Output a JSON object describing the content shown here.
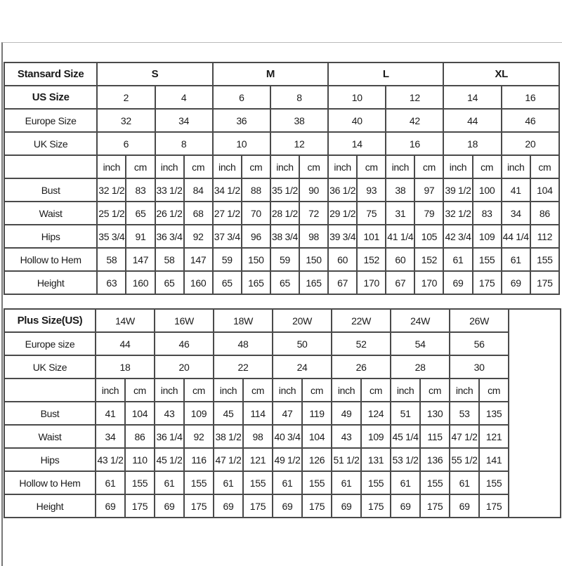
{
  "standard_table": {
    "header_label": "Stansard Size",
    "groups": [
      "S",
      "M",
      "L",
      "XL"
    ],
    "size_rows": [
      {
        "label": "US Size",
        "bold": true,
        "values": [
          "2",
          "4",
          "6",
          "8",
          "10",
          "12",
          "14",
          "16"
        ]
      },
      {
        "label": "Europe Size",
        "values": [
          "32",
          "34",
          "36",
          "38",
          "40",
          "42",
          "44",
          "46"
        ]
      },
      {
        "label": "UK Size",
        "values": [
          "6",
          "8",
          "10",
          "12",
          "14",
          "16",
          "18",
          "20"
        ]
      }
    ],
    "units": [
      "inch",
      "cm"
    ],
    "measure_rows": [
      {
        "label": "Bust",
        "values": [
          "32 1/2",
          "83",
          "33 1/2",
          "84",
          "34 1/2",
          "88",
          "35 1/2",
          "90",
          "36 1/2",
          "93",
          "38",
          "97",
          "39 1/2",
          "100",
          "41",
          "104"
        ]
      },
      {
        "label": "Waist",
        "values": [
          "25 1/2",
          "65",
          "26 1/2",
          "68",
          "27 1/2",
          "70",
          "28 1/2",
          "72",
          "29 1/2",
          "75",
          "31",
          "79",
          "32 1/2",
          "83",
          "34",
          "86"
        ]
      },
      {
        "label": "Hips",
        "values": [
          "35 3/4",
          "91",
          "36 3/4",
          "92",
          "37 3/4",
          "96",
          "38 3/4",
          "98",
          "39 3/4",
          "101",
          "41 1/4",
          "105",
          "42 3/4",
          "109",
          "44 1/4",
          "112"
        ]
      },
      {
        "label": "Hollow to Hem",
        "values": [
          "58",
          "147",
          "58",
          "147",
          "59",
          "150",
          "59",
          "150",
          "60",
          "152",
          "60",
          "152",
          "61",
          "155",
          "61",
          "155"
        ]
      },
      {
        "label": "Height",
        "values": [
          "63",
          "160",
          "65",
          "160",
          "65",
          "165",
          "65",
          "165",
          "67",
          "170",
          "67",
          "170",
          "69",
          "175",
          "69",
          "175"
        ]
      }
    ]
  },
  "plus_table": {
    "header_label": "Plus Size(US)",
    "sizes": [
      "14W",
      "16W",
      "18W",
      "20W",
      "22W",
      "24W",
      "26W"
    ],
    "size_rows": [
      {
        "label": "Europe size",
        "values": [
          "44",
          "46",
          "48",
          "50",
          "52",
          "54",
          "56"
        ]
      },
      {
        "label": "UK Size",
        "values": [
          "18",
          "20",
          "22",
          "24",
          "26",
          "28",
          "30"
        ]
      }
    ],
    "units": [
      "inch",
      "cm"
    ],
    "measure_rows": [
      {
        "label": "Bust",
        "values": [
          "41",
          "104",
          "43",
          "109",
          "45",
          "114",
          "47",
          "119",
          "49",
          "124",
          "51",
          "130",
          "53",
          "135"
        ]
      },
      {
        "label": "Waist",
        "values": [
          "34",
          "86",
          "36 1/4",
          "92",
          "38 1/2",
          "98",
          "40 3/4",
          "104",
          "43",
          "109",
          "45 1/4",
          "115",
          "47 1/2",
          "121"
        ]
      },
      {
        "label": "Hips",
        "values": [
          "43 1/2",
          "110",
          "45 1/2",
          "116",
          "47 1/2",
          "121",
          "49 1/2",
          "126",
          "51 1/2",
          "131",
          "53 1/2",
          "136",
          "55 1/2",
          "141"
        ]
      },
      {
        "label": "Hollow to Hem",
        "values": [
          "61",
          "155",
          "61",
          "155",
          "61",
          "155",
          "61",
          "155",
          "61",
          "155",
          "61",
          "155",
          "61",
          "155"
        ]
      },
      {
        "label": "Height",
        "values": [
          "69",
          "175",
          "69",
          "175",
          "69",
          "175",
          "69",
          "175",
          "69",
          "175",
          "69",
          "175",
          "69",
          "175"
        ]
      }
    ]
  }
}
